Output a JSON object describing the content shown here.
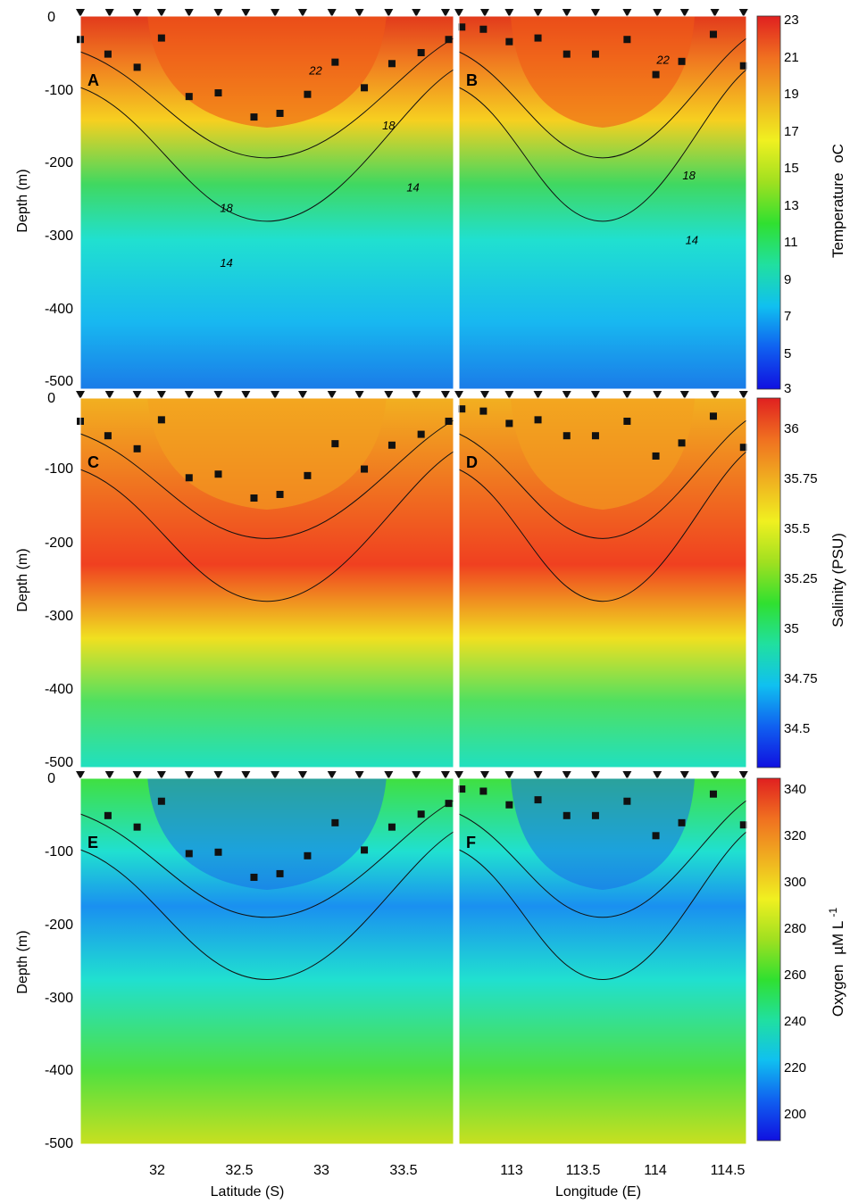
{
  "chart_data": {
    "type": "heatmap",
    "colormap": [
      "#1010e0",
      "#1060f0",
      "#10c0f0",
      "#20e0a0",
      "#30e030",
      "#a0e020",
      "#f0f020",
      "#f0b020",
      "#f07020",
      "#e02020"
    ],
    "y": {
      "label": "Depth (m)",
      "ticks": [
        "0",
        "-100",
        "-200",
        "-300",
        "-400",
        "-500"
      ],
      "range": [
        0,
        -510
      ]
    },
    "x_left": {
      "label": "Latitude (S)",
      "ticks": [
        "32",
        "32.5",
        "33",
        "33.5"
      ],
      "range": [
        31.55,
        33.85
      ]
    },
    "x_right": {
      "label": "Longitude (E)",
      "ticks": [
        "113",
        "113.5",
        "114",
        "114.5"
      ],
      "range": [
        112.65,
        114.65
      ]
    },
    "panels": [
      {
        "id": "A",
        "side": "left",
        "row": 0,
        "stations_x": [
          31.55,
          31.73,
          31.9,
          32.05,
          32.22,
          32.4,
          32.57,
          32.75,
          32.92,
          33.1,
          33.27,
          33.45,
          33.62,
          33.8
        ],
        "mld": [
          [
            31.55,
            -32
          ],
          [
            31.72,
            -52
          ],
          [
            31.9,
            -70
          ],
          [
            32.05,
            -30
          ],
          [
            32.22,
            -110
          ],
          [
            32.4,
            -105
          ],
          [
            32.62,
            -138
          ],
          [
            32.78,
            -133
          ],
          [
            32.95,
            -107
          ],
          [
            33.12,
            -63
          ],
          [
            33.3,
            -98
          ],
          [
            33.47,
            -65
          ],
          [
            33.65,
            -50
          ],
          [
            33.82,
            -32
          ]
        ],
        "contours": [
          {
            "label": "22",
            "x": 33.0,
            "y": -80
          },
          {
            "label": "18",
            "x": 33.45,
            "y": -155
          },
          {
            "label": "18",
            "x": 32.45,
            "y": -268
          },
          {
            "label": "14",
            "x": 33.6,
            "y": -240
          },
          {
            "label": "14",
            "x": 32.45,
            "y": -343
          }
        ]
      },
      {
        "id": "B",
        "side": "right",
        "row": 0,
        "stations_x": [
          112.65,
          112.83,
          113.0,
          113.2,
          113.4,
          113.6,
          113.82,
          114.03,
          114.22,
          114.43,
          114.63
        ],
        "mld": [
          [
            112.67,
            -15
          ],
          [
            112.82,
            -18
          ],
          [
            113.0,
            -35
          ],
          [
            113.2,
            -30
          ],
          [
            113.4,
            -52
          ],
          [
            113.6,
            -52
          ],
          [
            113.82,
            -32
          ],
          [
            114.02,
            -80
          ],
          [
            114.2,
            -62
          ],
          [
            114.42,
            -25
          ],
          [
            114.63,
            -68
          ]
        ],
        "contours": [
          {
            "label": "22",
            "x": 114.07,
            "y": -65
          },
          {
            "label": "18",
            "x": 114.25,
            "y": -223
          },
          {
            "label": "14",
            "x": 114.27,
            "y": -312
          }
        ]
      },
      {
        "id": "C",
        "side": "left",
        "row": 1,
        "stations_x": [
          31.55,
          31.73,
          31.9,
          32.05,
          32.22,
          32.4,
          32.57,
          32.75,
          32.92,
          33.1,
          33.27,
          33.45,
          33.62,
          33.8
        ],
        "mld": [
          [
            31.55,
            -32
          ],
          [
            31.72,
            -52
          ],
          [
            31.9,
            -70
          ],
          [
            32.05,
            -30
          ],
          [
            32.22,
            -110
          ],
          [
            32.4,
            -105
          ],
          [
            32.62,
            -138
          ],
          [
            32.78,
            -133
          ],
          [
            32.95,
            -107
          ],
          [
            33.12,
            -63
          ],
          [
            33.3,
            -98
          ],
          [
            33.47,
            -65
          ],
          [
            33.65,
            -50
          ],
          [
            33.82,
            -32
          ]
        ],
        "contours": []
      },
      {
        "id": "D",
        "side": "right",
        "row": 1,
        "stations_x": [
          112.65,
          112.83,
          113.0,
          113.2,
          113.4,
          113.6,
          113.82,
          114.03,
          114.22,
          114.43,
          114.63
        ],
        "mld": [
          [
            112.67,
            -15
          ],
          [
            112.82,
            -18
          ],
          [
            113.0,
            -35
          ],
          [
            113.2,
            -30
          ],
          [
            113.4,
            -52
          ],
          [
            113.6,
            -52
          ],
          [
            113.82,
            -32
          ],
          [
            114.02,
            -80
          ],
          [
            114.2,
            -62
          ],
          [
            114.42,
            -25
          ],
          [
            114.63,
            -68
          ]
        ],
        "contours": []
      },
      {
        "id": "E",
        "side": "left",
        "row": 2,
        "stations_x": [
          31.55,
          31.73,
          31.9,
          32.05,
          32.22,
          32.4,
          32.57,
          32.75,
          32.92,
          33.1,
          33.27,
          33.45,
          33.62,
          33.8
        ],
        "mld": [
          [
            31.72,
            -52
          ],
          [
            31.9,
            -68
          ],
          [
            32.05,
            -32
          ],
          [
            32.22,
            -105
          ],
          [
            32.4,
            -103
          ],
          [
            32.62,
            -138
          ],
          [
            32.78,
            -133
          ],
          [
            32.95,
            -108
          ],
          [
            33.12,
            -62
          ],
          [
            33.3,
            -100
          ],
          [
            33.47,
            -68
          ],
          [
            33.65,
            -50
          ],
          [
            33.82,
            -35
          ]
        ],
        "contours": []
      },
      {
        "id": "F",
        "side": "right",
        "row": 2,
        "stations_x": [
          112.65,
          112.83,
          113.0,
          113.2,
          113.4,
          113.6,
          113.82,
          114.03,
          114.22,
          114.43,
          114.63
        ],
        "mld": [
          [
            112.67,
            -15
          ],
          [
            112.82,
            -18
          ],
          [
            113.0,
            -37
          ],
          [
            113.2,
            -30
          ],
          [
            113.4,
            -52
          ],
          [
            113.6,
            -52
          ],
          [
            113.82,
            -32
          ],
          [
            114.02,
            -80
          ],
          [
            114.2,
            -62
          ],
          [
            114.42,
            -22
          ],
          [
            114.63,
            -65
          ]
        ],
        "contours": []
      }
    ],
    "colorbars": [
      {
        "row": 0,
        "label": "Temperature",
        "unit": "oC",
        "ticks": [
          "23",
          "21",
          "19",
          "17",
          "15",
          "13",
          "11",
          "9",
          "7",
          "5",
          "3"
        ]
      },
      {
        "row": 1,
        "label": "Salinity (PSU)",
        "ticks": [
          "36",
          "35.75",
          "35.5",
          "35.25",
          "35",
          "34.75",
          "34.5"
        ]
      },
      {
        "row": 2,
        "label": "Oxygen",
        "unit": "µM L",
        "unit_exp": "-1",
        "ticks": [
          "340",
          "320",
          "300",
          "280",
          "260",
          "240",
          "220",
          "200"
        ]
      }
    ]
  }
}
